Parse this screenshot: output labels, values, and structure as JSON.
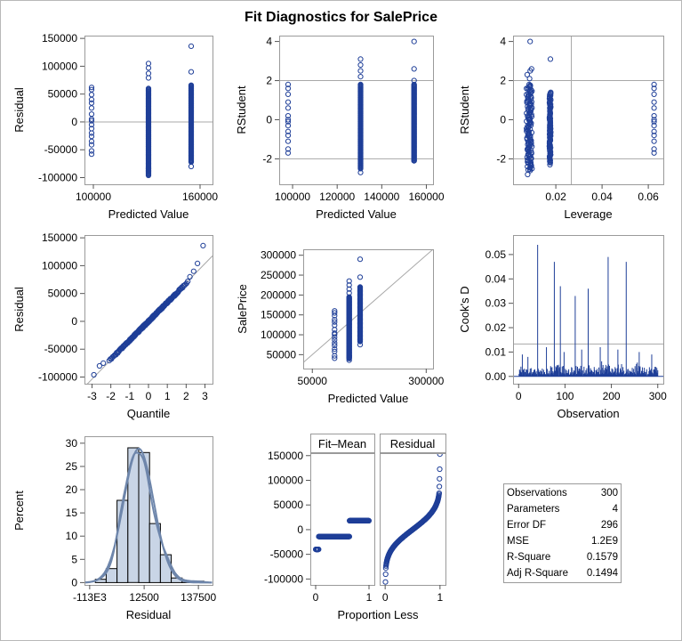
{
  "title": "Fit Diagnostics for SalePrice",
  "colors": {
    "marker": "#1f3f98",
    "ref_line": "#a8a8a8",
    "hist_fill": "#c9d5e6",
    "density": "#6e86ab"
  },
  "stats": [
    {
      "label": "Observations",
      "value": "300"
    },
    {
      "label": "Parameters",
      "value": "4"
    },
    {
      "label": "Error DF",
      "value": "296"
    },
    {
      "label": "MSE",
      "value": "1.2E9"
    },
    {
      "label": "R-Square",
      "value": "0.1579"
    },
    {
      "label": "Adj R-Square",
      "value": "0.1494"
    }
  ],
  "chart_data": [
    {
      "type": "scatter",
      "xlabel": "Predicted Value",
      "ylabel": "Residual",
      "xlim": [
        95000,
        167000
      ],
      "ylim": [
        -112000,
        155000
      ],
      "xticks": [
        {
          "v": 100000,
          "t": "100000"
        },
        {
          "v": 160000,
          "t": "160000"
        }
      ],
      "yticks": [
        {
          "v": 150000,
          "t": "150000"
        },
        {
          "v": 100000,
          "t": "100000"
        },
        {
          "v": 50000,
          "t": "50000"
        },
        {
          "v": 0,
          "t": "0"
        },
        {
          "v": -50000,
          "t": "-50000"
        },
        {
          "v": -100000,
          "t": "-100000"
        }
      ],
      "hlines": [
        0
      ],
      "groups": [
        {
          "x": 99000,
          "values": [
            62000,
            58000,
            49000,
            40000,
            34000,
            25000,
            14000,
            5000,
            2000,
            -5000,
            -12000,
            -20000,
            -26000,
            -35000,
            -41000,
            -52000,
            -58000
          ]
        },
        {
          "x": 131000,
          "min": -96000,
          "max": 60000,
          "n": 120,
          "extra": [
            105000,
            97000,
            87000,
            79000,
            -84000,
            -88000
          ]
        },
        {
          "x": 155000,
          "min": -72000,
          "max": 66000,
          "n": 110,
          "extra": [
            136000,
            90000,
            -80000
          ]
        }
      ]
    },
    {
      "type": "scatter",
      "xlabel": "Predicted Value",
      "ylabel": "RStudent",
      "xlim": [
        94000,
        163000
      ],
      "ylim": [
        -3.3,
        4.3
      ],
      "xticks": [
        {
          "v": 100000,
          "t": "100000"
        },
        {
          "v": 120000,
          "t": "120000"
        },
        {
          "v": 140000,
          "t": "140000"
        },
        {
          "v": 160000,
          "t": "160000"
        }
      ],
      "yticks": [
        {
          "v": 4,
          "t": "4"
        },
        {
          "v": 2,
          "t": "2"
        },
        {
          "v": 0,
          "t": "0"
        },
        {
          "v": -2,
          "t": "-2"
        }
      ],
      "hlines": [
        2,
        -2
      ],
      "groups": [
        {
          "x": 98000,
          "values": [
            1.8,
            1.6,
            1.3,
            0.9,
            0.6,
            0.2,
            0.0,
            -0.1,
            -0.3,
            -0.6,
            -0.8,
            -1.1,
            -1.5,
            -1.7
          ]
        },
        {
          "x": 130500,
          "min": -2.5,
          "max": 1.8,
          "n": 120,
          "extra": [
            3.1,
            2.8,
            2.5,
            2.2,
            -2.7
          ]
        },
        {
          "x": 154500,
          "min": -2.1,
          "max": 1.8,
          "n": 110,
          "extra": [
            4.0,
            2.6,
            2.0,
            -2.1
          ]
        }
      ]
    },
    {
      "type": "scatter",
      "xlabel": "Leverage",
      "ylabel": "RStudent",
      "xlim": [
        0.0015,
        0.0665
      ],
      "ylim": [
        -3.3,
        4.3
      ],
      "xticks": [
        {
          "v": 0.02,
          "t": "0.02"
        },
        {
          "v": 0.04,
          "t": "0.04"
        },
        {
          "v": 0.06,
          "t": "0.06"
        }
      ],
      "yticks": [
        {
          "v": 4,
          "t": "4"
        },
        {
          "v": 2,
          "t": "2"
        },
        {
          "v": 0,
          "t": "0"
        },
        {
          "v": -2,
          "t": "-2"
        }
      ],
      "hlines": [
        2,
        -2
      ],
      "vlines": [
        0.0267
      ],
      "groups": [
        {
          "x": 0.0085,
          "min": -2.6,
          "max": 1.8,
          "n": 130,
          "extra": [
            4.0,
            2.6,
            2.5,
            2.3,
            2.1,
            -2.8
          ],
          "jitter": 0.0012
        },
        {
          "x": 0.0175,
          "min": -2.2,
          "max": 1.4,
          "n": 90,
          "extra": [
            3.1,
            -2.3
          ],
          "jitter": 0.0003
        },
        {
          "x": 0.0625,
          "values": [
            1.8,
            1.6,
            1.3,
            0.9,
            0.6,
            0.2,
            0.0,
            -0.1,
            -0.3,
            -0.6,
            -0.8,
            -1.1,
            -1.5,
            -1.7
          ]
        }
      ]
    },
    {
      "type": "scatter",
      "xlabel": "Quantile",
      "ylabel": "Residual",
      "xlim": [
        -3.4,
        3.4
      ],
      "ylim": [
        -112000,
        155000
      ],
      "xticks": [
        {
          "v": -3,
          "t": "-3"
        },
        {
          "v": -2,
          "t": "-2"
        },
        {
          "v": -1,
          "t": "-1"
        },
        {
          "v": 0,
          "t": "0"
        },
        {
          "v": 1,
          "t": "1"
        },
        {
          "v": 2,
          "t": "2"
        },
        {
          "v": 3,
          "t": "3"
        }
      ],
      "yticks": [
        {
          "v": 150000,
          "t": "150000"
        },
        {
          "v": 100000,
          "t": "100000"
        },
        {
          "v": 50000,
          "t": "50000"
        },
        {
          "v": 0,
          "t": "0"
        },
        {
          "v": -50000,
          "t": "-50000"
        },
        {
          "v": -100000,
          "t": "-100000"
        }
      ],
      "refline": {
        "slope": 34600,
        "intercept": 0
      },
      "qq": {
        "n": 300,
        "slope": 34000
      },
      "extra_points": [
        [
          2.9,
          136000
        ],
        [
          2.6,
          104000
        ],
        [
          2.4,
          90000
        ],
        [
          2.2,
          80000
        ],
        [
          -2.9,
          -96000
        ],
        [
          -2.6,
          -80000
        ],
        [
          -2.4,
          -75000
        ]
      ]
    },
    {
      "type": "scatter",
      "xlabel": "Predicted Value",
      "ylabel": "SalePrice",
      "xlim": [
        30000,
        315000
      ],
      "ylim": [
        15000,
        315000
      ],
      "xticks": [
        {
          "v": 50000,
          "t": "50000"
        },
        {
          "v": 300000,
          "t": "300000"
        }
      ],
      "yticks": [
        {
          "v": 300000,
          "t": "300000"
        },
        {
          "v": 250000,
          "t": "250000"
        },
        {
          "v": 200000,
          "t": "200000"
        },
        {
          "v": 150000,
          "t": "150000"
        },
        {
          "v": 100000,
          "t": "100000"
        },
        {
          "v": 50000,
          "t": "50000"
        }
      ],
      "refline": {
        "slope": 1,
        "intercept": 0
      },
      "groups": [
        {
          "x": 99000,
          "values": [
            160000,
            155000,
            148000,
            138000,
            132000,
            124000,
            113000,
            104000,
            101000,
            94000,
            87000,
            79000,
            73000,
            64000,
            58000,
            47000,
            41000
          ]
        },
        {
          "x": 131000,
          "min": 40000,
          "max": 195000,
          "n": 120,
          "extra": [
            235000,
            225000,
            215000,
            205000,
            48000,
            43000,
            36000
          ]
        },
        {
          "x": 155000,
          "min": 83000,
          "max": 220000,
          "n": 110,
          "extra": [
            290000,
            245000,
            75000
          ]
        }
      ]
    },
    {
      "type": "needle",
      "xlabel": "Observation",
      "ylabel": "Cook's D",
      "xlim": [
        -12,
        312
      ],
      "ylim": [
        -0.003,
        0.058
      ],
      "xticks": [
        {
          "v": 0,
          "t": "0"
        },
        {
          "v": 100,
          "t": "100"
        },
        {
          "v": 200,
          "t": "200"
        },
        {
          "v": 300,
          "t": "300"
        }
      ],
      "yticks": [
        {
          "v": 0.05,
          "t": "0.05"
        },
        {
          "v": 0.04,
          "t": "0.04"
        },
        {
          "v": 0.03,
          "t": "0.03"
        },
        {
          "v": 0.02,
          "t": "0.02"
        },
        {
          "v": 0.01,
          "t": "0.01"
        },
        {
          "v": 0.0,
          "t": "0.00"
        }
      ],
      "hlines": [
        0.0133
      ],
      "n": 300,
      "spikes": [
        [
          41,
          0.054
        ],
        [
          77,
          0.047
        ],
        [
          90,
          0.037
        ],
        [
          122,
          0.033
        ],
        [
          150,
          0.036
        ],
        [
          193,
          0.049
        ],
        [
          232,
          0.047
        ],
        [
          8,
          0.009
        ],
        [
          20,
          0.008
        ],
        [
          60,
          0.012
        ],
        [
          98,
          0.01
        ],
        [
          136,
          0.011
        ],
        [
          176,
          0.012
        ],
        [
          214,
          0.011
        ],
        [
          260,
          0.01
        ],
        [
          287,
          0.009
        ]
      ]
    },
    {
      "type": "bar",
      "xlabel": "Residual",
      "ylabel": "Percent",
      "xlim": [
        -125000,
        170000
      ],
      "ylim": [
        -0.5,
        31.5
      ],
      "xticks": [
        {
          "v": -113000,
          "t": "-113E3"
        },
        {
          "v": 12500,
          "t": "12500"
        },
        {
          "v": 137500,
          "t": "137500"
        }
      ],
      "yticks": [
        {
          "v": 30,
          "t": "30"
        },
        {
          "v": 25,
          "t": "25"
        },
        {
          "v": 20,
          "t": "20"
        },
        {
          "v": 15,
          "t": "15"
        },
        {
          "v": 10,
          "t": "10"
        },
        {
          "v": 5,
          "t": "5"
        },
        {
          "v": 0,
          "t": "0"
        }
      ],
      "bin_width": 25000,
      "bins": [
        {
          "center": -87500,
          "value": 0.7
        },
        {
          "center": -62500,
          "value": 3.0
        },
        {
          "center": -37500,
          "value": 17.7
        },
        {
          "center": -12500,
          "value": 29.0
        },
        {
          "center": 12500,
          "value": 28.0
        },
        {
          "center": 37500,
          "value": 12.7
        },
        {
          "center": 62500,
          "value": 6.0
        },
        {
          "center": 87500,
          "value": 1.0
        },
        {
          "center": 112500,
          "value": 0.3
        },
        {
          "center": 137500,
          "value": 0.3
        }
      ],
      "density": {
        "mean": 0,
        "sd": 34600,
        "kernel_bw": 14000
      }
    },
    {
      "type": "scatter",
      "ylabel": "",
      "xlabel": "Proportion Less",
      "panels": [
        {
          "strip": "Fit–Mean",
          "kind": "fitmean",
          "levels": [
            {
              "value": -40000,
              "from": 0.0,
              "to": 0.057
            },
            {
              "value": -14000,
              "from": 0.057,
              "to": 0.633
            },
            {
              "value": 18000,
              "from": 0.633,
              "to": 1.0
            }
          ]
        },
        {
          "strip": "Residual",
          "kind": "residual"
        }
      ],
      "xlim": [
        -0.1,
        1.1
      ],
      "ylim": [
        -112000,
        155000
      ],
      "xticks": [
        {
          "v": 0,
          "t": "0"
        },
        {
          "v": 1,
          "t": "1"
        }
      ],
      "yticks": [
        {
          "v": 150000,
          "t": "150000"
        },
        {
          "v": 100000,
          "t": "100000"
        },
        {
          "v": 50000,
          "t": "50000"
        },
        {
          "v": 0,
          "t": "0"
        },
        {
          "v": -50000,
          "t": "-50000"
        },
        {
          "v": -100000,
          "t": "-100000"
        }
      ]
    }
  ]
}
